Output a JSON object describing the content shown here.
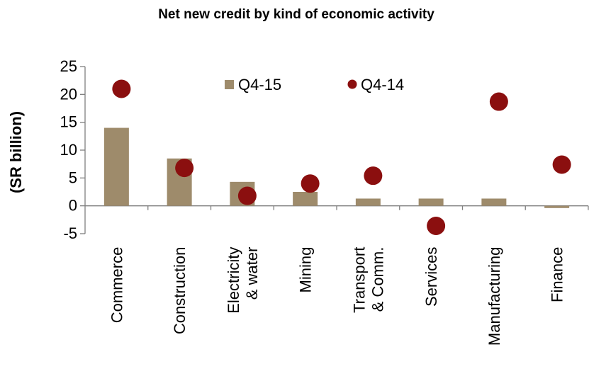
{
  "chart_data": {
    "type": "bar",
    "title": "Net new credit by kind of economic activity",
    "xlabel": "",
    "ylabel": "(SR billion)",
    "ylim": [
      -5,
      25
    ],
    "yticks": [
      "-5",
      "0",
      "5",
      "10",
      "15",
      "20",
      "25"
    ],
    "categories": [
      [
        "Commerce"
      ],
      [
        "Construction"
      ],
      [
        "Electricity",
        "& water"
      ],
      [
        "Mining"
      ],
      [
        "Transport",
        "& Comm."
      ],
      [
        "Services"
      ],
      [
        "Manufacturing"
      ],
      [
        "Finance"
      ]
    ],
    "series": [
      {
        "name": "Q4-15",
        "kind": "bar",
        "color": "#9e8b6b",
        "values": [
          14.0,
          8.5,
          4.3,
          2.5,
          1.3,
          1.3,
          1.3,
          -0.4
        ]
      },
      {
        "name": "Q4-14",
        "kind": "dot",
        "color": "#8b0f0f",
        "values": [
          21.0,
          6.8,
          1.8,
          4.0,
          5.4,
          -3.6,
          18.7,
          7.4
        ]
      }
    ],
    "legend": "top-center",
    "grid": false
  }
}
